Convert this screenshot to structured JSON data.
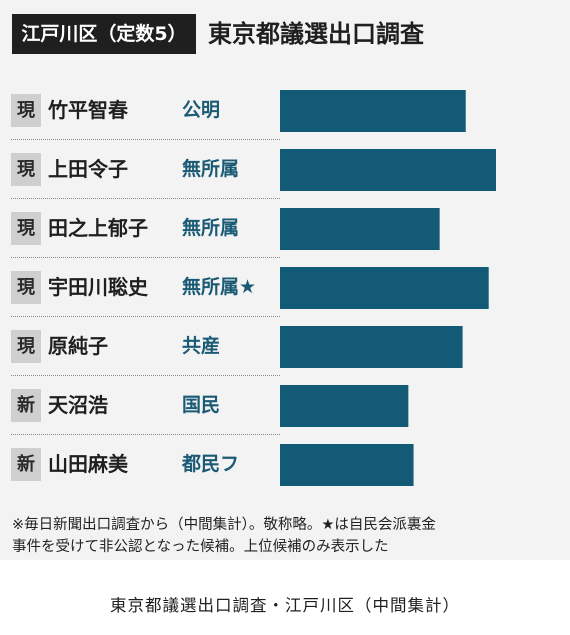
{
  "header": {
    "badge": "江戸川区（定数5）",
    "title": "東京都議選出口調査"
  },
  "colors": {
    "bar": "#125a76",
    "party_text": "#1b5a75",
    "badge_bg": "#1f1f1f"
  },
  "chart_data": {
    "type": "bar",
    "orientation": "horizontal",
    "title": "東京都議選出口調査",
    "categories": [
      "竹平智春",
      "上田令子",
      "田之上郁子",
      "宇田川聡史",
      "原純子",
      "天沼浩",
      "山田麻美"
    ],
    "series": [
      {
        "values": [
          178,
          207,
          153,
          200,
          175,
          123,
          128
        ]
      }
    ],
    "xlim": [
      0,
      230
    ],
    "axis_labels_shown": false,
    "grid": false,
    "candidates": [
      {
        "status": "現",
        "name": "竹平智春",
        "party": "公明"
      },
      {
        "status": "現",
        "name": "上田令子",
        "party": "無所属"
      },
      {
        "status": "現",
        "name": "田之上郁子",
        "party": "無所属"
      },
      {
        "status": "現",
        "name": "宇田川聡史",
        "party": "無所属★"
      },
      {
        "status": "現",
        "name": "原純子",
        "party": "共産"
      },
      {
        "status": "新",
        "name": "天沼浩",
        "party": "国民"
      },
      {
        "status": "新",
        "name": "山田麻美",
        "party": "都民フ"
      }
    ]
  },
  "note": {
    "line1": "※毎日新聞出口調査から（中間集計）。敬称略。★は自民会派裏金",
    "line2": "事件を受けて非公認となった候補。上位候補のみ表示した"
  },
  "caption": "東京都議選出口調査・江戸川区（中間集計）"
}
